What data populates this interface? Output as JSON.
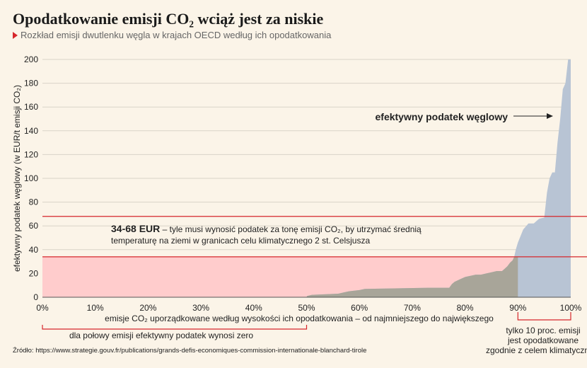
{
  "title": "Opodatkowanie emisji CO₂ wciąż jest za niskie",
  "subtitle": "Rozkład emisji dwutlenku węgla w krajach OECD według ich opodatkowania",
  "source": "Źródło: https://www.strategie.gouv.fr/publications/grands-defis-economiques-commission-internationale-blanchard-tirole",
  "colors": {
    "background": "#fbf4e8",
    "area": "#b8c4d4",
    "band": "#ffcccc",
    "red": "#d6262b",
    "grid": "#d9d3c8",
    "overlap": "#a8a599"
  },
  "chart_data": {
    "type": "area",
    "ylabel": "efektywny podatek węglowy (w EUR/t emisji CO₂)",
    "xlabel": "emisje CO₂ uporządkowane według wysokości ich opodatkowania – od najmniejszego do największego",
    "xlim": [
      0,
      100
    ],
    "ylim": [
      0,
      200
    ],
    "x_ticks": [
      0,
      10,
      20,
      30,
      40,
      50,
      60,
      70,
      80,
      90,
      100
    ],
    "x_tick_labels": [
      "0%",
      "10%",
      "20%",
      "30%",
      "40%",
      "50%",
      "60%",
      "70%",
      "80%",
      "90%",
      "100%"
    ],
    "y_ticks": [
      0,
      20,
      40,
      60,
      80,
      100,
      120,
      140,
      160,
      180,
      200
    ],
    "grid": true,
    "x": [
      0,
      50,
      50.1,
      51,
      56,
      57,
      58,
      60,
      61,
      73,
      77,
      77.5,
      78,
      79,
      80,
      81,
      82,
      83,
      84,
      85,
      86,
      87,
      87.5,
      88,
      88.5,
      89,
      89.3,
      89.6,
      90,
      91,
      92,
      93,
      94,
      95,
      95.5,
      96,
      96.5,
      97,
      97.5,
      98,
      98.5,
      99,
      99.5,
      100
    ],
    "y": [
      0,
      0,
      1,
      2,
      3,
      4,
      5,
      6,
      7,
      8,
      8,
      11,
      13,
      15,
      17,
      18,
      19,
      19,
      20,
      21,
      22,
      22,
      24,
      26,
      29,
      31,
      34,
      40,
      46,
      57,
      62,
      62,
      66,
      67,
      88,
      100,
      105,
      105,
      130,
      150,
      175,
      180,
      200,
      200
    ],
    "series_name": "efektywny podatek węglowy",
    "band": {
      "low": 34,
      "high": 68
    },
    "annotations": {
      "band_value": "34-68 EUR",
      "band_text_1": " – tyle musi wynosić podatek za tonę emisji CO₂, by utrzymać średnią",
      "band_text_2": "temperaturę na ziemi w granicach celu klimatycznego 2 st. Celsjusza",
      "half_zero": "dla połowy emisji efektywny podatek wynosi zero",
      "top10_line1": "tylko 10 proc. emisji",
      "top10_line2": "jest opodatkowane",
      "top10_line3": "zgodnie z celem klimatycznym"
    }
  }
}
